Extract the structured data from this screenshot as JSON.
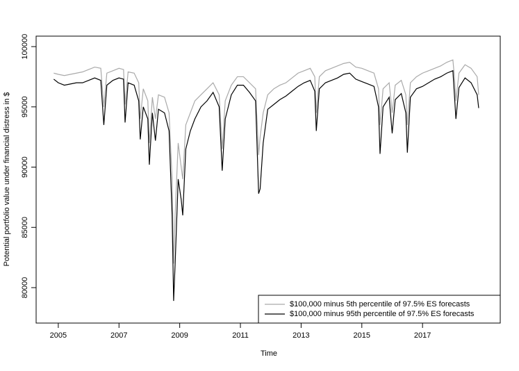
{
  "chart_data": {
    "type": "line",
    "xlabel": "Time",
    "ylabel": "Potential portfolio value under financial distress in $",
    "x": [
      2004.85,
      2005.0,
      2005.2,
      2005.4,
      2005.6,
      2005.8,
      2006.0,
      2006.2,
      2006.4,
      2006.5,
      2006.6,
      2006.8,
      2007.0,
      2007.15,
      2007.2,
      2007.3,
      2007.5,
      2007.65,
      2007.7,
      2007.8,
      2007.95,
      2008.0,
      2008.1,
      2008.2,
      2008.3,
      2008.5,
      2008.65,
      2008.75,
      2008.8,
      2008.85,
      2008.95,
      2009.05,
      2009.1,
      2009.2,
      2009.35,
      2009.5,
      2009.7,
      2009.9,
      2010.1,
      2010.3,
      2010.4,
      2010.5,
      2010.7,
      2010.9,
      2011.1,
      2011.3,
      2011.5,
      2011.6,
      2011.65,
      2011.75,
      2011.9,
      2012.1,
      2012.3,
      2012.5,
      2012.7,
      2012.9,
      2013.1,
      2013.3,
      2013.45,
      2013.5,
      2013.6,
      2013.8,
      2014.0,
      2014.2,
      2014.4,
      2014.6,
      2014.8,
      2015.0,
      2015.2,
      2015.4,
      2015.55,
      2015.6,
      2015.7,
      2015.9,
      2016.0,
      2016.1,
      2016.3,
      2016.45,
      2016.5,
      2016.6,
      2016.8,
      2017.0,
      2017.2,
      2017.4,
      2017.6,
      2017.8,
      2018.0,
      2018.05,
      2018.1,
      2018.2,
      2018.4,
      2018.6,
      2018.8,
      2018.85
    ],
    "series": [
      {
        "name": "$100,000 minus 5th percentile of 97.5% ES forecasts",
        "color": "#a9a9a9",
        "values": [
          97800,
          97700,
          97600,
          97700,
          97800,
          97900,
          98100,
          98300,
          98200,
          95000,
          97800,
          98000,
          98200,
          98100,
          95200,
          97900,
          97800,
          97000,
          94000,
          96500,
          95500,
          92000,
          95800,
          94000,
          96000,
          95800,
          94500,
          89000,
          82000,
          86000,
          92000,
          90000,
          89000,
          93500,
          94500,
          95500,
          96000,
          96500,
          97000,
          96000,
          91500,
          95500,
          96800,
          97500,
          97500,
          97000,
          96500,
          91000,
          92500,
          94500,
          96000,
          96500,
          96800,
          97000,
          97400,
          97800,
          98000,
          98200,
          97500,
          94500,
          97500,
          98000,
          98200,
          98400,
          98600,
          98700,
          98300,
          98200,
          98000,
          97800,
          96500,
          93500,
          96500,
          97000,
          94500,
          96800,
          97200,
          96000,
          93500,
          97000,
          97500,
          97800,
          98000,
          98200,
          98400,
          98700,
          98900,
          97500,
          95500,
          97800,
          98500,
          98200,
          97500,
          96000
        ]
      },
      {
        "name": "$100,000 minus 95th percentile of 97.5% ES forecasts",
        "color": "#000000",
        "values": [
          97300,
          97000,
          96800,
          96900,
          97000,
          97000,
          97200,
          97400,
          97200,
          93500,
          96800,
          97200,
          97400,
          97300,
          93700,
          97000,
          96800,
          95500,
          92300,
          95000,
          94000,
          90200,
          94500,
          92200,
          94800,
          94500,
          93000,
          86000,
          78900,
          82000,
          89000,
          87300,
          86000,
          91500,
          93000,
          94000,
          95000,
          95500,
          96200,
          95000,
          89700,
          94000,
          96000,
          96800,
          96800,
          96200,
          95500,
          87800,
          88200,
          92000,
          94800,
          95200,
          95600,
          95900,
          96300,
          96700,
          97000,
          97200,
          96300,
          93000,
          96500,
          97000,
          97200,
          97400,
          97700,
          97800,
          97300,
          97100,
          96900,
          96700,
          95000,
          91100,
          95000,
          95800,
          92800,
          95600,
          96100,
          94500,
          91200,
          95800,
          96500,
          96700,
          97000,
          97300,
          97500,
          97800,
          98000,
          96000,
          94000,
          96600,
          97400,
          97000,
          96000,
          94900
        ]
      }
    ],
    "xlim": [
      2004.27,
      2019.56
    ],
    "xticks": [
      2005,
      2007,
      2009,
      2011,
      2013,
      2015,
      2017
    ],
    "ylim": [
      77060,
      100870
    ],
    "yticks": [
      80000,
      85000,
      90000,
      95000,
      100000
    ],
    "legend": "bottom-right"
  }
}
